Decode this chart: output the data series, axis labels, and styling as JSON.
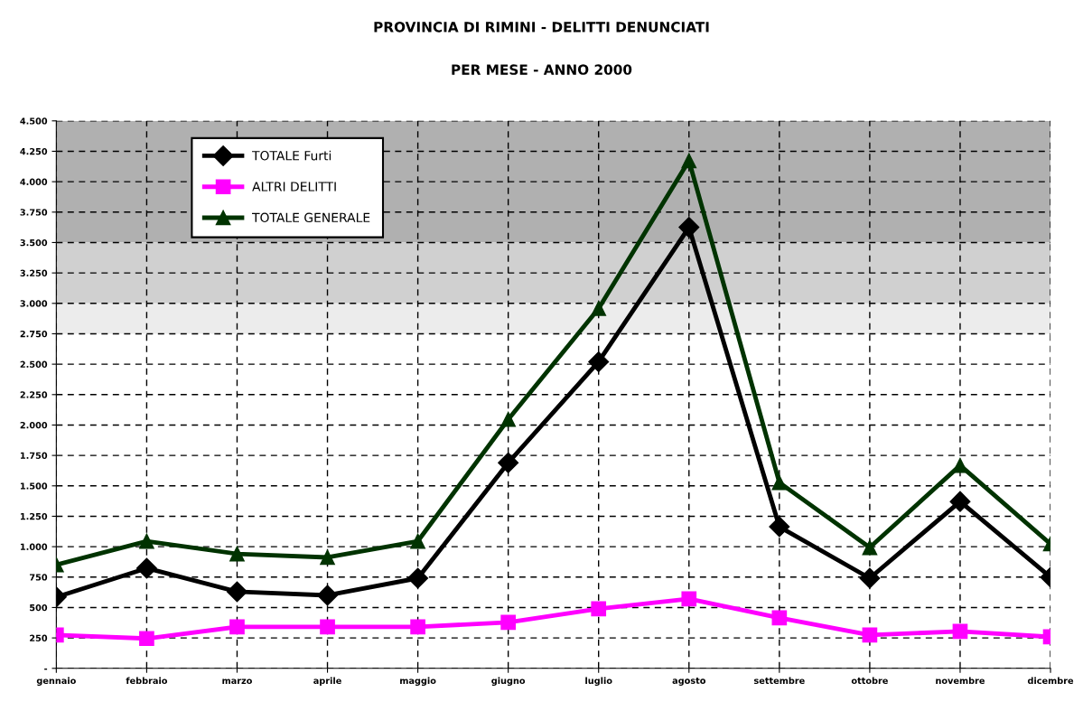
{
  "chart_data": {
    "type": "line",
    "title": "PROVINCIA DI RIMINI - DELITTI DENUNCIATI",
    "subtitle": "PER MESE - ANNO 2000",
    "categories": [
      "gennaio",
      "febbraio",
      "marzo",
      "aprile",
      "maggio",
      "giugno",
      "luglio",
      "agosto",
      "settembre",
      "ottobre",
      "novembre",
      "dicembre"
    ],
    "series": [
      {
        "name": "TOTALE Furti",
        "color": "#000000",
        "marker": "diamond",
        "values": [
          586,
          823,
          630,
          600,
          741,
          1690,
          2520,
          3625,
          1164,
          741,
          1371,
          749
        ]
      },
      {
        "name": "ALTRI DELITTI",
        "color": "#ff00ff",
        "marker": "square",
        "values": [
          274,
          245,
          341,
          341,
          341,
          378,
          489,
          571,
          415,
          274,
          304,
          259
        ]
      },
      {
        "name": "TOTALE GENERALE",
        "color": "#003300",
        "marker": "triangle",
        "values": [
          852,
          1045,
          941,
          912,
          1045,
          2046,
          2958,
          4173,
          1527,
          993,
          1668,
          1023
        ]
      }
    ],
    "ylim": [
      0,
      4500
    ],
    "yticks": [
      {
        "value": 0,
        "label": "-"
      },
      250,
      500,
      750,
      {
        "value": 1000,
        "label": "1.000"
      },
      {
        "value": 1250,
        "label": "1.250"
      },
      {
        "value": 1500,
        "label": "1.500"
      },
      {
        "value": 1750,
        "label": "1.750"
      },
      {
        "value": 2000,
        "label": "2.000"
      },
      {
        "value": 2250,
        "label": "2.250"
      },
      {
        "value": 2500,
        "label": "2.500"
      },
      {
        "value": 2750,
        "label": "2.750"
      },
      {
        "value": 3000,
        "label": "3.000"
      },
      {
        "value": 3250,
        "label": "3.250"
      },
      {
        "value": 3500,
        "label": "3.500"
      },
      {
        "value": 3750,
        "label": "3.750"
      },
      {
        "value": 4000,
        "label": "4.000"
      },
      {
        "value": 4250,
        "label": "4.250"
      },
      {
        "value": 4500,
        "label": "4.500"
      }
    ],
    "bands": [
      {
        "axis": "y",
        "from": 3500,
        "to": 4500,
        "color": "#b0b0b0"
      },
      {
        "axis": "y",
        "from": 3000,
        "to": 3500,
        "color": "#d0d0d0"
      },
      {
        "axis": "y",
        "from": 2750,
        "to": 3000,
        "color": "#ececec"
      }
    ],
    "grid": true,
    "legend": "top left",
    "line_style": "solid"
  }
}
